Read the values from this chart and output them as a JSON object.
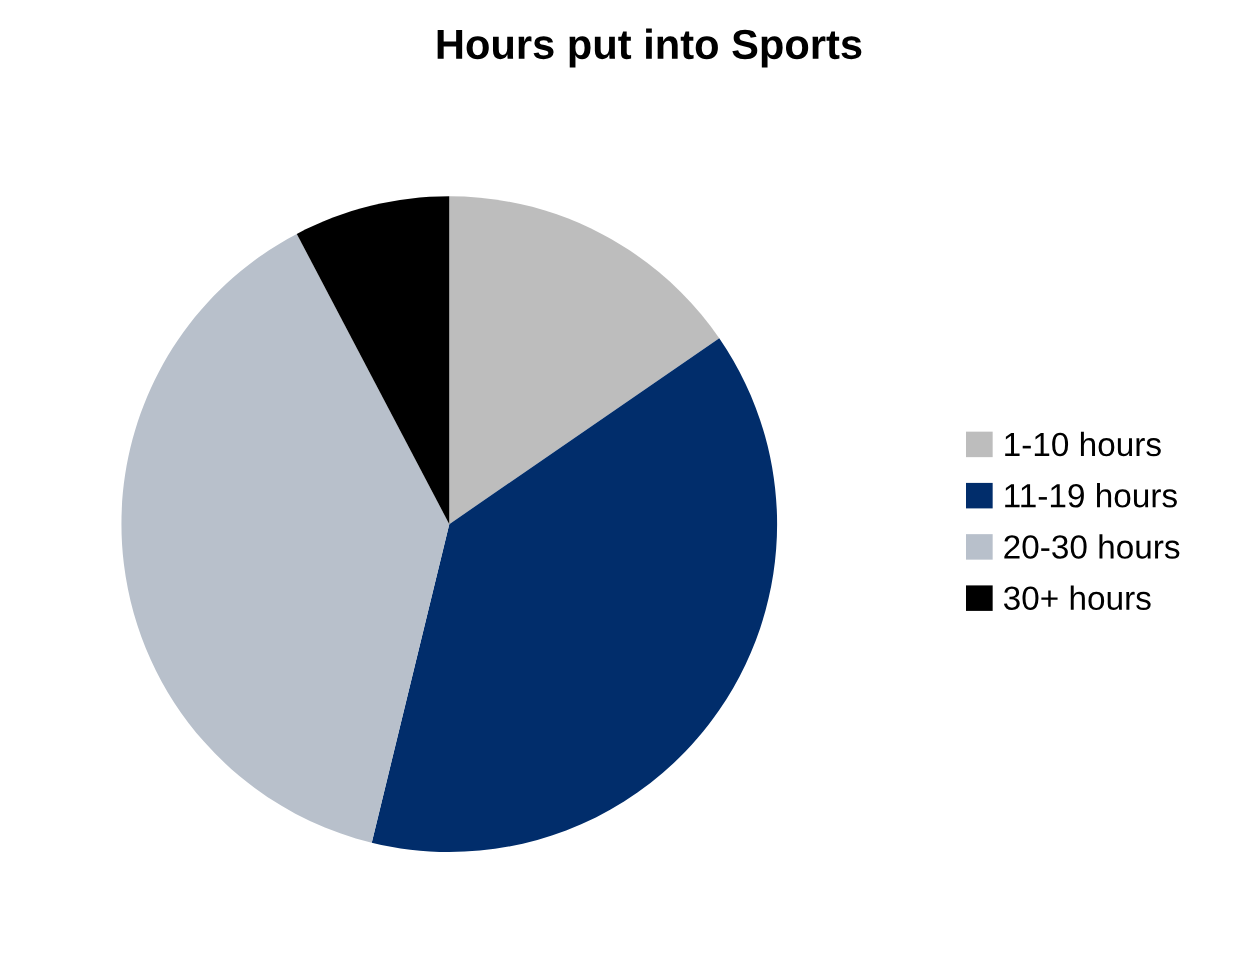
{
  "chart_data": {
    "type": "pie",
    "title": "Hours put into Sports",
    "categories": [
      "1-10 hours",
      "11-19 hours",
      "20-30 hours",
      "30+ hours"
    ],
    "values": [
      15.4,
      38.4,
      38.5,
      7.7
    ],
    "colors": [
      "#bdbdbd",
      "#012d6b",
      "#b8c0cb",
      "#000000"
    ],
    "legend": "right"
  }
}
